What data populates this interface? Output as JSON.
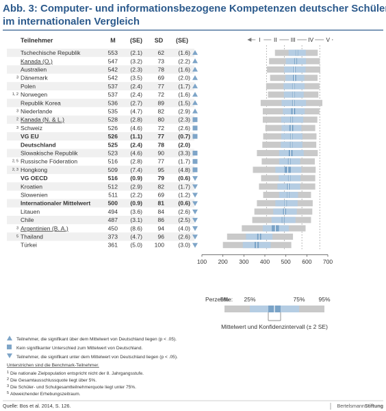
{
  "title": {
    "line1": "Abb. 3: Computer- und informationsbezogene Kompetenzen deutscher Schüler",
    "line2": "im internationalen Vergleich"
  },
  "headers": {
    "participant": "Teilnehmer",
    "m": "M",
    "se1": "(SE)",
    "sd": "SD",
    "se2": "(SE)"
  },
  "levels": [
    "I",
    "II",
    "III",
    "IV",
    "V"
  ],
  "level_thresholds": [
    407.5,
    492.5,
    576.5,
    661.5
  ],
  "colors": {
    "title": "#2c5a8c",
    "bar_outer": "#c9c9c9",
    "bar_inner": "#b5cde3",
    "bar_ci": "#7aa3c7",
    "mean_line": "#ffffff",
    "marker": "#7ea5c8",
    "stripe": "#f0f0f0"
  },
  "chart_data": {
    "type": "bar",
    "orientation": "horizontal-percentile",
    "xlim": [
      100,
      700
    ],
    "xticks": [
      100,
      200,
      300,
      400,
      500,
      600,
      700
    ],
    "rows": [
      {
        "name": "Tschechische Republik",
        "sup": "",
        "underline": false,
        "bold": false,
        "m": "553",
        "se": "(2.1)",
        "sd": "62",
        "se_sd": "(1.6)",
        "marker": "up",
        "mean": 553,
        "ci": 4.2,
        "p5": 448,
        "p25": 513,
        "p75": 595,
        "p95": 652
      },
      {
        "name": "Kanada (O.)",
        "sup": "",
        "underline": true,
        "bold": false,
        "m": "547",
        "se": "(3.2)",
        "sd": "73",
        "se_sd": "(2.2)",
        "marker": "up",
        "mean": 547,
        "ci": 6.4,
        "p5": 420,
        "p25": 500,
        "p75": 596,
        "p95": 662
      },
      {
        "name": "Australien",
        "sup": "",
        "underline": false,
        "bold": false,
        "m": "542",
        "se": "(2.3)",
        "sd": "78",
        "se_sd": "(1.6)",
        "marker": "up",
        "mean": 542,
        "ci": 4.6,
        "p5": 410,
        "p25": 492,
        "p75": 594,
        "p95": 664
      },
      {
        "name": "Dänemark",
        "sup": "3",
        "underline": false,
        "bold": false,
        "m": "542",
        "se": "(3.5)",
        "sd": "69",
        "se_sd": "(2.0)",
        "marker": "up",
        "mean": 542,
        "ci": 7.0,
        "p5": 425,
        "p25": 498,
        "p75": 588,
        "p95": 651
      },
      {
        "name": "Polen",
        "sup": "",
        "underline": false,
        "bold": false,
        "m": "537",
        "se": "(2.4)",
        "sd": "77",
        "se_sd": "(1.7)",
        "marker": "up",
        "mean": 537,
        "ci": 4.8,
        "p5": 406,
        "p25": 489,
        "p75": 589,
        "p95": 660
      },
      {
        "name": "Norwegen",
        "sup": "1, 2",
        "underline": false,
        "bold": false,
        "m": "537",
        "se": "(2.4)",
        "sd": "72",
        "se_sd": "(1.6)",
        "marker": "up",
        "mean": 537,
        "ci": 4.8,
        "p5": 415,
        "p25": 491,
        "p75": 585,
        "p95": 655
      },
      {
        "name": "Republik Korea",
        "sup": "",
        "underline": false,
        "bold": false,
        "m": "536",
        "se": "(2.7)",
        "sd": "89",
        "se_sd": "(1.5)",
        "marker": "up",
        "mean": 536,
        "ci": 5.4,
        "p5": 380,
        "p25": 480,
        "p75": 596,
        "p95": 674
      },
      {
        "name": "Niederlande",
        "sup": "3",
        "underline": false,
        "bold": false,
        "m": "535",
        "se": "(4.7)",
        "sd": "82",
        "se_sd": "(2.9)",
        "marker": "up",
        "mean": 535,
        "ci": 9.4,
        "p5": 390,
        "p25": 486,
        "p75": 590,
        "p95": 660
      },
      {
        "name": "Kanada (N. & L.)",
        "sup": "2",
        "underline": true,
        "bold": false,
        "m": "528",
        "se": "(2.8)",
        "sd": "80",
        "se_sd": "(2.3)",
        "marker": "square",
        "mean": 528,
        "ci": 5.6,
        "p5": 390,
        "p25": 478,
        "p75": 583,
        "p95": 650
      },
      {
        "name": "Schweiz",
        "sup": "3",
        "underline": false,
        "bold": false,
        "m": "526",
        "se": "(4.6)",
        "sd": "72",
        "se_sd": "(2.6)",
        "marker": "square",
        "mean": 526,
        "ci": 9.2,
        "p5": 402,
        "p25": 480,
        "p75": 574,
        "p95": 640
      },
      {
        "name": "VG EU",
        "sup": "",
        "underline": false,
        "bold": true,
        "m": "526",
        "se": "(1.1)",
        "sd": "77",
        "se_sd": "(0.7)",
        "marker": "square",
        "mean": 526,
        "ci": 2.2,
        "p5": 392,
        "p25": 478,
        "p75": 579,
        "p95": 646
      },
      {
        "name": "Deutschland",
        "sup": "",
        "underline": false,
        "bold": true,
        "m": "525",
        "se": "(2.4)",
        "sd": "78",
        "se_sd": "(2.0)",
        "marker": "none",
        "mean": 525,
        "ci": 4.8,
        "p5": 388,
        "p25": 476,
        "p75": 579,
        "p95": 645
      },
      {
        "name": "Slowakische Republik",
        "sup": "",
        "underline": false,
        "bold": false,
        "m": "523",
        "se": "(4.6)",
        "sd": "90",
        "se_sd": "(3.3)",
        "marker": "square",
        "mean": 523,
        "ci": 9.2,
        "p5": 362,
        "p25": 468,
        "p75": 585,
        "p95": 652
      },
      {
        "name": "Russische Föderation",
        "sup": "2, 5",
        "underline": false,
        "bold": false,
        "m": "516",
        "se": "(2.8)",
        "sd": "77",
        "se_sd": "(1.7)",
        "marker": "square",
        "mean": 516,
        "ci": 5.6,
        "p5": 385,
        "p25": 468,
        "p75": 568,
        "p95": 638
      },
      {
        "name": "Hongkong",
        "sup": "2, 3",
        "underline": false,
        "bold": false,
        "m": "509",
        "se": "(7.4)",
        "sd": "95",
        "se_sd": "(4.8)",
        "marker": "square",
        "mean": 509,
        "ci": 14.8,
        "p5": 343,
        "p25": 450,
        "p75": 574,
        "p95": 642
      },
      {
        "name": "VG OECD",
        "sup": "",
        "underline": false,
        "bold": true,
        "m": "516",
        "se": "(0.9)",
        "sd": "79",
        "se_sd": "(0.6)",
        "marker": "down",
        "mean": 516,
        "ci": 1.8,
        "p5": 382,
        "p25": 466,
        "p75": 570,
        "p95": 640
      },
      {
        "name": "Kroatien",
        "sup": "",
        "underline": false,
        "bold": false,
        "m": "512",
        "se": "(2.9)",
        "sd": "82",
        "se_sd": "(1.7)",
        "marker": "down",
        "mean": 512,
        "ci": 5.8,
        "p5": 372,
        "p25": 460,
        "p75": 568,
        "p95": 640
      },
      {
        "name": "Slowenien",
        "sup": "",
        "underline": false,
        "bold": false,
        "m": "511",
        "se": "(2.2)",
        "sd": "69",
        "se_sd": "(1.2)",
        "marker": "down",
        "mean": 511,
        "ci": 4.4,
        "p5": 392,
        "p25": 468,
        "p75": 558,
        "p95": 620
      },
      {
        "name": "Internationaler Mittelwert",
        "sup": "",
        "underline": false,
        "bold": true,
        "m": "500",
        "se": "(0.9)",
        "sd": "81",
        "se_sd": "(0.6)",
        "marker": "down",
        "mean": 500,
        "ci": 1.8,
        "p5": 362,
        "p25": 450,
        "p75": 556,
        "p95": 628
      },
      {
        "name": "Litauen",
        "sup": "",
        "underline": false,
        "bold": false,
        "m": "494",
        "se": "(3.6)",
        "sd": "84",
        "se_sd": "(2.6)",
        "marker": "down",
        "mean": 494,
        "ci": 7.2,
        "p5": 350,
        "p25": 440,
        "p75": 552,
        "p95": 626
      },
      {
        "name": "Chile",
        "sup": "",
        "underline": false,
        "bold": false,
        "m": "487",
        "se": "(3.1)",
        "sd": "86",
        "se_sd": "(2.5)",
        "marker": "down",
        "mean": 487,
        "ci": 6.2,
        "p5": 340,
        "p25": 432,
        "p75": 546,
        "p95": 620
      },
      {
        "name": "Argentinien (B. A.)",
        "sup": "3",
        "underline": true,
        "bold": false,
        "m": "450",
        "se": "(8.6)",
        "sd": "94",
        "se_sd": "(4.0)",
        "marker": "down",
        "mean": 450,
        "ci": 17.2,
        "p5": 290,
        "p25": 390,
        "p75": 514,
        "p95": 594
      },
      {
        "name": "Thailand",
        "sup": "5",
        "underline": false,
        "bold": false,
        "m": "373",
        "se": "(4.7)",
        "sd": "96",
        "se_sd": "(2.6)",
        "marker": "down",
        "mean": 373,
        "ci": 9.4,
        "p5": 220,
        "p25": 310,
        "p75": 436,
        "p95": 534
      },
      {
        "name": "Türkei",
        "sup": "",
        "underline": false,
        "bold": false,
        "m": "361",
        "se": "(5.0)",
        "sd": "100",
        "se_sd": "(3.0)",
        "marker": "down",
        "mean": 361,
        "ci": 10.0,
        "p5": 200,
        "p25": 295,
        "p75": 428,
        "p95": 526
      }
    ]
  },
  "legend_box": {
    "perzentile_label": "Perzentile:",
    "p5_label": "5%",
    "p25_label": "25%",
    "p75_label": "75%",
    "p95_label": "95%",
    "ci_label": "Mittelwert und Konfidenzintervall (± 2 SE)"
  },
  "notes": {
    "up": "Teilnehmer, die signifikant über dem Mittelwert von Deutschland liegen (p < .05).",
    "square": "Kein signifikanter Unterschied zum Mittelwert von Deutschland.",
    "down": "Teilnehmer, die signifikant unter dem Mittelwert von Deutschland liegen (p < .05).",
    "benchmark": "Unterstrichen sind die Benchmark-Teilnehmer.",
    "fn1_num": "1",
    "fn1": "Die nationale Zielpopulation entspricht nicht der 8. Jahrgangsstufe.",
    "fn2_num": "2",
    "fn2": "Die Gesamtausschlussquote liegt über 5%.",
    "fn3_num": "3",
    "fn3": "Die Schüler- und Schulgesamtteilnehmerquote liegt unter 75%.",
    "fn5_num": "5",
    "fn5": "Abweichender Erhebungszeitraum."
  },
  "footer": {
    "source": "Quelle: Bos et al. 2014, S. 126.",
    "brand_regular": "Bertelsmann",
    "brand_bold": "Stiftung"
  }
}
